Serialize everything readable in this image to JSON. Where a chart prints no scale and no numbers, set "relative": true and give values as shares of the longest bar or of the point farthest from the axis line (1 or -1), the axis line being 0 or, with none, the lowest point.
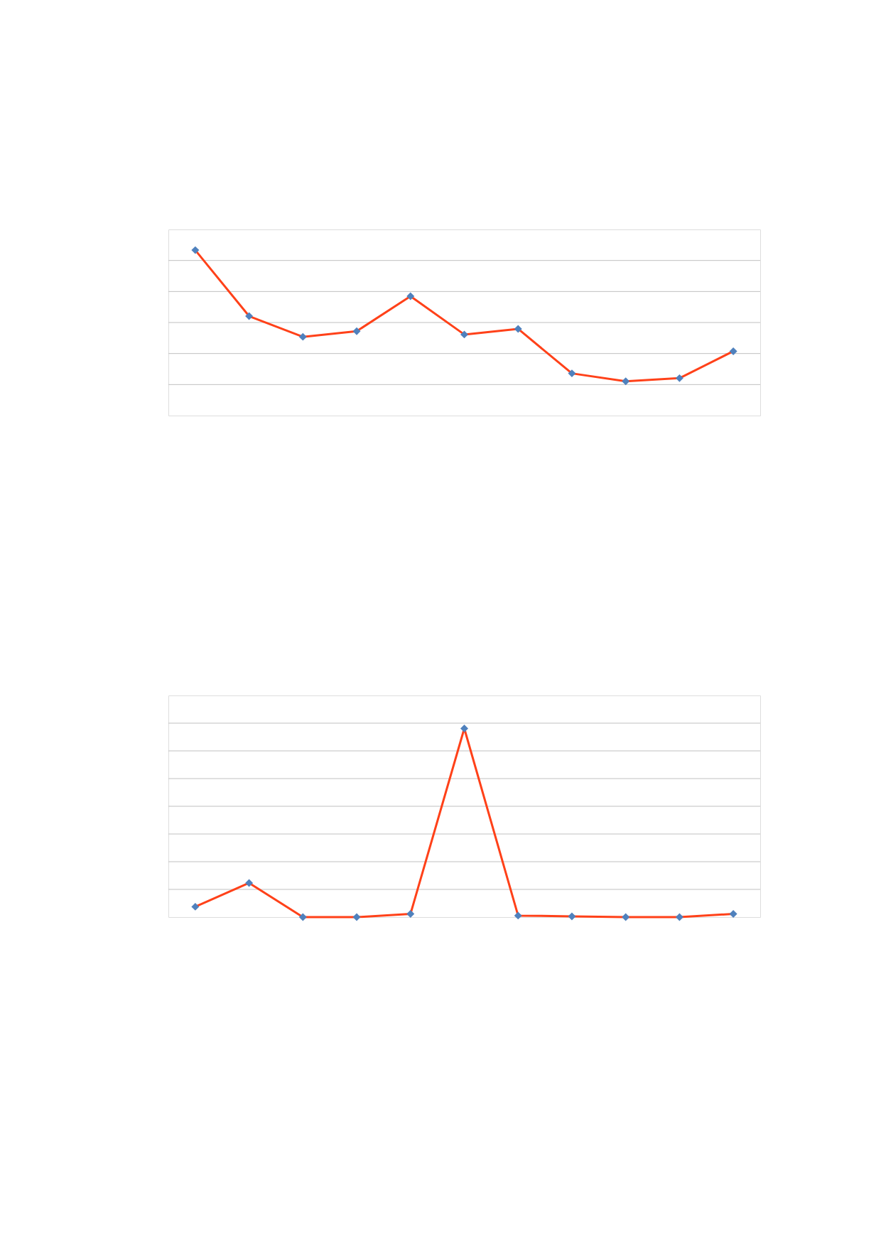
{
  "chart_data": [
    {
      "type": "line",
      "relative": true,
      "categories": [
        null,
        null,
        null,
        null,
        null,
        null,
        null,
        null,
        null,
        null,
        null
      ],
      "series": [
        {
          "color": "#ff4119",
          "values": [
            1,
            0.601,
            0.476,
            0.51,
            0.721,
            0.49,
            0.524,
            0.255,
            0.207,
            0.226,
            0.389
          ]
        }
      ],
      "marker": "diamond",
      "line_style": "solid",
      "grid": "y",
      "legend": false,
      "tick_labels": false
    },
    {
      "type": "line",
      "relative": true,
      "categories": [
        null,
        null,
        null,
        null,
        null,
        null,
        null,
        null,
        null,
        null,
        null
      ],
      "series": [
        {
          "color": "#ff4119",
          "values": [
            0.055,
            0.181,
            0,
            0,
            0.017,
            1,
            0.008,
            0.004,
            0,
            0,
            0.017
          ]
        }
      ],
      "marker": "diamond",
      "line_style": "solid",
      "grid": "y",
      "legend": false,
      "tick_labels": false
    }
  ]
}
